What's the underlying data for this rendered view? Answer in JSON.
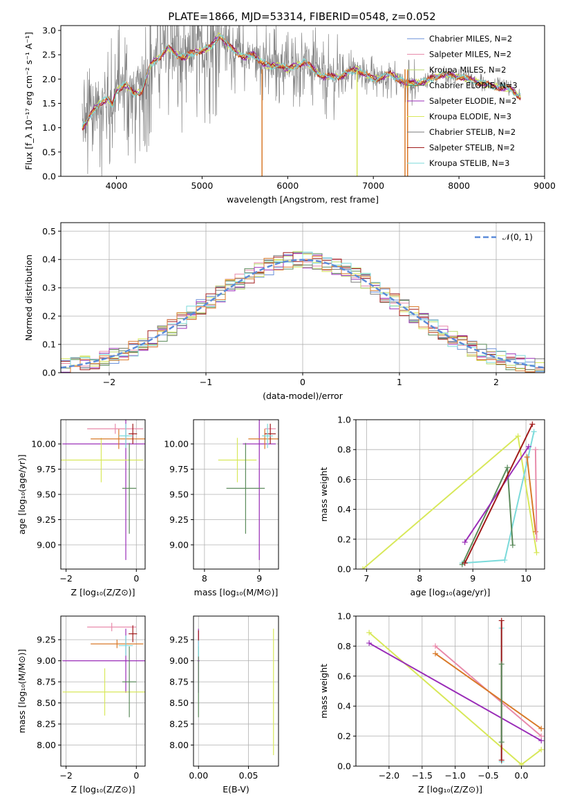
{
  "figure": {
    "title": "PLATE=1866, MJD=53314, FIBERID=0548, z=0.052"
  },
  "colors": {
    "data": "#808080",
    "chabrier_miles": "#6a8fd9",
    "salpeter_miles": "#e88aaa",
    "kroupa_miles": "#b8d96a",
    "chabrier_elodie": "#5a8a5a",
    "salpeter_elodie": "#9a2db8",
    "kroupa_elodie": "#d8e85a",
    "chabrier_stelib": "#7a7a7a",
    "salpeter_stelib": "#a01a1a",
    "kroupa_stelib": "#7adada",
    "orange": "#d97a2a",
    "normal": "#5b8bd9"
  },
  "chart_data": [
    {
      "id": "spectrum",
      "type": "line",
      "xlabel": "wavelength [Angstrom, rest frame]",
      "ylabel": "Flux [f_λ 10⁻¹⁷ erg cm⁻² s⁻¹ A⁻¹]",
      "xlim": [
        3350,
        9000
      ],
      "ylim": [
        0,
        3.1
      ],
      "xticks": [
        4000,
        5000,
        6000,
        7000,
        8000,
        9000
      ],
      "yticks": [
        0.0,
        0.5,
        1.0,
        1.5,
        2.0,
        2.5,
        3.0
      ],
      "legend": [
        "Chabrier MILES, N_SSP=2",
        "Salpeter MILES, N_SSP=2",
        "Kroupa MILES, N_SSP=2",
        "Chabrier ELODIE, N_SSP=3",
        "Salpeter ELODIE, N_SSP=2",
        "Kroupa ELODIE, N_SSP=3",
        "Chabrier STELIB, N_SSP=2",
        "Salpeter STELIB, N_SSP=2",
        "Kroupa STELIB, N_SSP=3"
      ],
      "legend_placement": "right",
      "continuum": {
        "x": [
          3600,
          3650,
          3700,
          3750,
          3800,
          3850,
          3900,
          3950,
          4000,
          4100,
          4200,
          4300,
          4400,
          4500,
          4600,
          4700,
          4800,
          4900,
          5000,
          5100,
          5200,
          5300,
          5400,
          5500,
          5600,
          5700,
          5800,
          5900,
          6000,
          6200,
          6400,
          6600,
          6800,
          7000,
          7200,
          7400,
          7600,
          7800,
          8000,
          8200,
          8400,
          8600,
          8700
        ],
        "y": [
          1.0,
          1.1,
          1.25,
          1.4,
          1.5,
          1.55,
          1.6,
          1.45,
          1.75,
          1.9,
          1.7,
          1.75,
          2.3,
          2.45,
          2.65,
          2.5,
          2.45,
          2.55,
          2.6,
          2.65,
          2.9,
          2.7,
          2.55,
          2.45,
          2.5,
          2.35,
          2.25,
          2.3,
          2.2,
          2.35,
          2.05,
          2.05,
          2.2,
          2.0,
          2.1,
          1.9,
          1.95,
          2.1,
          2.05,
          1.95,
          1.85,
          1.8,
          1.65
        ]
      }
    },
    {
      "id": "residuals",
      "type": "line",
      "xlabel": "(data-model)/error",
      "ylabel": "Normed distribution",
      "xlim": [
        -2.5,
        2.5
      ],
      "ylim": [
        0,
        0.53
      ],
      "xticks": [
        -2,
        -1,
        0,
        1,
        2
      ],
      "yticks": [
        0.0,
        0.1,
        0.2,
        0.3,
        0.4,
        0.5
      ],
      "grid": true,
      "legend": [
        "𝒩(0, 1)"
      ],
      "legend_placement": "top-right",
      "normal": {
        "mean": 0,
        "sigma": 1
      }
    },
    {
      "id": "age-vs-Z",
      "type": "scatter",
      "xlabel": "Z [log₁₀(Z/Z⊙)]",
      "ylabel": "age  [log₁₀(age/yr)]",
      "xlim": [
        -2.15,
        0.25
      ],
      "ylim": [
        8.76,
        10.24
      ],
      "xticks": [
        -2,
        0
      ],
      "yticks": [
        9.0,
        9.25,
        9.5,
        9.75,
        10.0
      ],
      "grid": true
    },
    {
      "id": "age-vs-mass",
      "type": "scatter",
      "xlabel": "mass [log₁₀(M/M⊙)]",
      "ylabel": "",
      "xlim": [
        7.8,
        9.35
      ],
      "ylim": [
        8.76,
        10.24
      ],
      "xticks": [
        8,
        9
      ],
      "yticks": [
        9.0,
        9.25,
        9.5,
        9.75,
        10.0
      ],
      "grid": true
    },
    {
      "id": "massweight-vs-age",
      "type": "line",
      "xlabel": "age  [log₁₀(age/yr)]",
      "ylabel": "mass weight",
      "xlim": [
        6.8,
        10.35
      ],
      "ylim": [
        0,
        1.0
      ],
      "xticks": [
        7,
        8,
        9,
        10
      ],
      "yticks": [
        0.0,
        0.2,
        0.4,
        0.6,
        0.8,
        1.0
      ],
      "grid": true,
      "series": [
        {
          "color": "kroupa_elodie",
          "x": [
            6.93,
            9.85,
            10.2
          ],
          "y": [
            0.0,
            0.89,
            0.11
          ]
        },
        {
          "color": "kroupa_stelib",
          "x": [
            8.8,
            9.6,
            10.15
          ],
          "y": [
            0.04,
            0.06,
            0.92
          ]
        },
        {
          "color": "chabrier_elodie",
          "x": [
            8.8,
            9.65,
            9.75
          ],
          "y": [
            0.03,
            0.68,
            0.16
          ]
        },
        {
          "color": "salpeter_elodie",
          "x": [
            8.85,
            10.05
          ],
          "y": [
            0.18,
            0.82
          ]
        },
        {
          "color": "salpeter_stelib",
          "x": [
            8.85,
            10.12
          ],
          "y": [
            0.04,
            0.97
          ]
        },
        {
          "color": "orange",
          "x": [
            10.02,
            10.18
          ],
          "y": [
            0.75,
            0.25
          ]
        },
        {
          "color": "salpeter_miles",
          "x": [
            10.18,
            10.2
          ],
          "y": [
            0.8,
            0.2
          ]
        }
      ]
    },
    {
      "id": "mass-vs-Z",
      "type": "scatter",
      "xlabel": "Z [log₁₀(Z/Z⊙)]",
      "ylabel": "mass [log₁₀(M/M⊙)]",
      "xlim": [
        -2.15,
        0.25
      ],
      "ylim": [
        7.75,
        9.53
      ],
      "xticks": [
        -2,
        0
      ],
      "yticks": [
        8.0,
        8.25,
        8.5,
        8.75,
        9.0,
        9.25
      ],
      "grid": true
    },
    {
      "id": "mass-vs-ebv",
      "type": "scatter",
      "xlabel": "E(B-V)",
      "ylabel": "",
      "xlim": [
        -0.005,
        0.08
      ],
      "ylim": [
        7.75,
        9.53
      ],
      "xticks": [
        0.0,
        0.05
      ],
      "yticks": [
        8.0,
        8.25,
        8.5,
        8.75,
        9.0,
        9.25
      ],
      "grid": true
    },
    {
      "id": "massweight-vs-Z",
      "type": "line",
      "xlabel": "Z [log₁₀(Z/Z⊙)]",
      "ylabel": "mass weight",
      "xlim": [
        -2.5,
        0.35
      ],
      "ylim": [
        0,
        1.0
      ],
      "xticks": [
        -2.0,
        -1.5,
        -1.0,
        -0.5,
        0.0
      ],
      "yticks": [
        0.0,
        0.2,
        0.4,
        0.6,
        0.8,
        1.0
      ],
      "grid": true,
      "series": [
        {
          "color": "kroupa_elodie",
          "x": [
            -2.3,
            0.0,
            0.3
          ],
          "y": [
            0.89,
            0.01,
            0.11
          ]
        },
        {
          "color": "salpeter_elodie",
          "x": [
            -2.3,
            0.3
          ],
          "y": [
            0.82,
            0.17
          ]
        },
        {
          "color": "salpeter_miles",
          "x": [
            -1.3,
            0.3
          ],
          "y": [
            0.8,
            0.2
          ]
        },
        {
          "color": "orange",
          "x": [
            -1.3,
            0.3
          ],
          "y": [
            0.75,
            0.25
          ]
        },
        {
          "color": "kroupa_stelib",
          "x": [
            -0.3,
            -0.3
          ],
          "y": [
            0.03,
            0.92
          ]
        },
        {
          "color": "salpeter_stelib",
          "x": [
            -0.3,
            -0.3
          ],
          "y": [
            0.04,
            0.97
          ]
        },
        {
          "color": "chabrier_elodie",
          "x": [
            -0.3,
            -0.3
          ],
          "y": [
            0.16,
            0.68
          ]
        }
      ]
    }
  ]
}
